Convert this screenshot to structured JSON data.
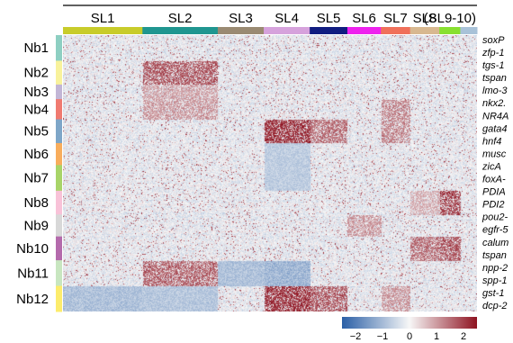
{
  "panel_letter": "",
  "chart_data": {
    "type": "heatmap",
    "title": "",
    "xlabel": "",
    "ylabel": "",
    "column_clusters": [
      {
        "label": "SL1",
        "color": "#c8cc2a",
        "weight": 19
      },
      {
        "label": "SL2",
        "color": "#1f9690",
        "weight": 18
      },
      {
        "label": "SL3",
        "color": "#9a8a72",
        "weight": 11
      },
      {
        "label": "SL4",
        "color": "#d6a2dc",
        "weight": 11
      },
      {
        "label": "SL5",
        "color": "#101c80",
        "weight": 9
      },
      {
        "label": "SL6",
        "color": "#ee22ee",
        "weight": 8
      },
      {
        "label": "SL7",
        "color": "#f0705a",
        "weight": 7
      },
      {
        "label": "SL8",
        "color": "#d8b890",
        "weight": 7
      },
      {
        "label": "(SL9-10)",
        "color": "#88e030",
        "weight": 5
      },
      {
        "label": "",
        "color": "#a8c2d8",
        "weight": 4
      }
    ],
    "row_clusters": [
      {
        "label": "Nb1",
        "color": "#8ecfc2",
        "weight": 28
      },
      {
        "label": "Nb2",
        "color": "#f8f29c",
        "weight": 26
      },
      {
        "label": "Nb3",
        "color": "#c2b6d6",
        "weight": 16
      },
      {
        "label": "Nb4",
        "color": "#f07a70",
        "weight": 22
      },
      {
        "label": "Nb5",
        "color": "#7ea6c8",
        "weight": 26
      },
      {
        "label": "Nb6",
        "color": "#f8ad5c",
        "weight": 24
      },
      {
        "label": "Nb7",
        "color": "#a8d468",
        "weight": 28
      },
      {
        "label": "Nb8",
        "color": "#f8c2d8",
        "weight": 26
      },
      {
        "label": "Nb9",
        "color": "#d8d8d8",
        "weight": 24
      },
      {
        "label": "Nb10",
        "color": "#b46aac",
        "weight": 26
      },
      {
        "label": "Nb11",
        "color": "#c8e6c0",
        "weight": 28
      },
      {
        "label": "Nb12",
        "color": "#fcec6c",
        "weight": 28
      }
    ],
    "gene_labels": [
      "soxP",
      "zfp-1",
      "tgs-1",
      "tspan",
      "lmo-3",
      "nkx2.",
      "NR4A",
      "gata4",
      "hnf4",
      "musc",
      "zicA",
      "foxA-",
      "PDIA",
      "PDI2",
      "pou2-",
      "egfr-5",
      "calum",
      "tspan",
      "npp-2",
      "spp-1",
      "gst-1",
      "dcp-2"
    ],
    "enriched_blocks": [
      {
        "row": "Nb2",
        "col": "SL2",
        "level": 1.6
      },
      {
        "row": "Nb3",
        "col": "SL2",
        "level": 0.9
      },
      {
        "row": "Nb4",
        "col": "SL2",
        "level": 1.0
      },
      {
        "row": "Nb5",
        "col": "SL4",
        "level": 2.0
      },
      {
        "row": "Nb5",
        "col": "SL5",
        "level": 1.4
      },
      {
        "row": "Nb4",
        "col": "SL7",
        "level": 1.2
      },
      {
        "row": "Nb5",
        "col": "SL7",
        "level": 1.2
      },
      {
        "row": "Nb8",
        "col": "(SL9-10)",
        "level": 1.8
      },
      {
        "row": "Nb8",
        "col": "SL8",
        "level": 0.8
      },
      {
        "row": "Nb10",
        "col": "SL8",
        "level": 1.4
      },
      {
        "row": "Nb10",
        "col": "(SL9-10)",
        "level": 1.6
      },
      {
        "row": "Nb11",
        "col": "SL2",
        "level": 1.5
      },
      {
        "row": "Nb12",
        "col": "SL4",
        "level": 2.0
      },
      {
        "row": "Nb12",
        "col": "SL5",
        "level": 1.6
      },
      {
        "row": "Nb12",
        "col": "SL7",
        "level": 1.0
      },
      {
        "row": "Nb9",
        "col": "SL6",
        "level": 1.0
      }
    ],
    "depleted_blocks": [
      {
        "row": "Nb11",
        "col": "SL4",
        "level": -1.2
      },
      {
        "row": "Nb11",
        "col": "SL3",
        "level": -1.0
      },
      {
        "row": "Nb12",
        "col": "SL1",
        "level": -1.0
      },
      {
        "row": "Nb12",
        "col": "SL2",
        "level": -0.9
      },
      {
        "row": "Nb6",
        "col": "SL4",
        "level": -0.8
      },
      {
        "row": "Nb7",
        "col": "SL4",
        "level": -0.8
      }
    ],
    "colorbar": {
      "ticks": [
        "−2",
        "−1",
        "0",
        "1",
        "2"
      ],
      "range": [
        -2.5,
        2.5
      ],
      "low_color": "#2a5fa6",
      "mid_color": "#f7f7f7",
      "high_color": "#8e1220"
    },
    "grid": false,
    "legend": "bottom-right colorbar"
  }
}
